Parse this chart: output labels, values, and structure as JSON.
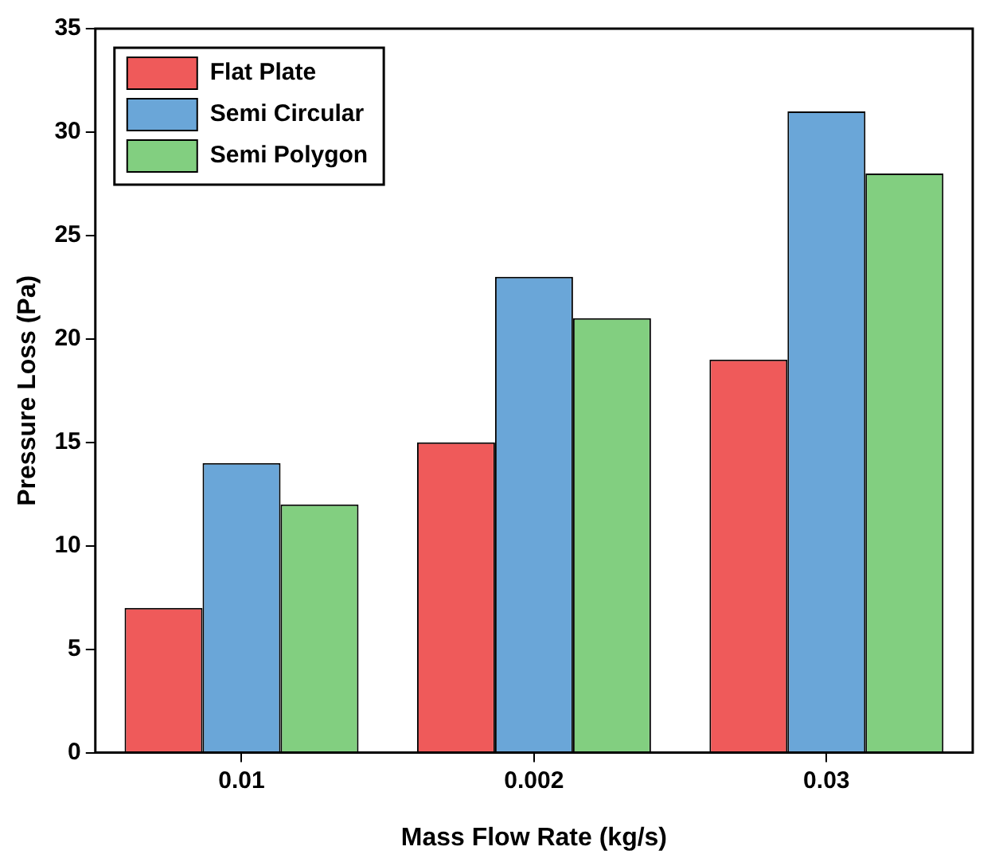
{
  "chart_data": {
    "type": "bar",
    "xlabel": "Mass Flow Rate (kg/s)",
    "ylabel": "Pressure Loss (Pa)",
    "categories": [
      "0.01",
      "0.002",
      "0.03"
    ],
    "series": [
      {
        "name": "Flat Plate",
        "color": "#ef5a5a",
        "values": [
          7,
          15,
          19
        ]
      },
      {
        "name": "Semi Circular",
        "color": "#6aa6d8",
        "values": [
          14,
          23,
          31
        ]
      },
      {
        "name": "Semi Polygon",
        "color": "#82cf80",
        "values": [
          12,
          21,
          28
        ]
      }
    ],
    "ylim": [
      0,
      35
    ],
    "yticks": [
      0,
      5,
      10,
      15,
      20,
      25,
      30,
      35
    ],
    "grid": false,
    "legend": "top left"
  }
}
